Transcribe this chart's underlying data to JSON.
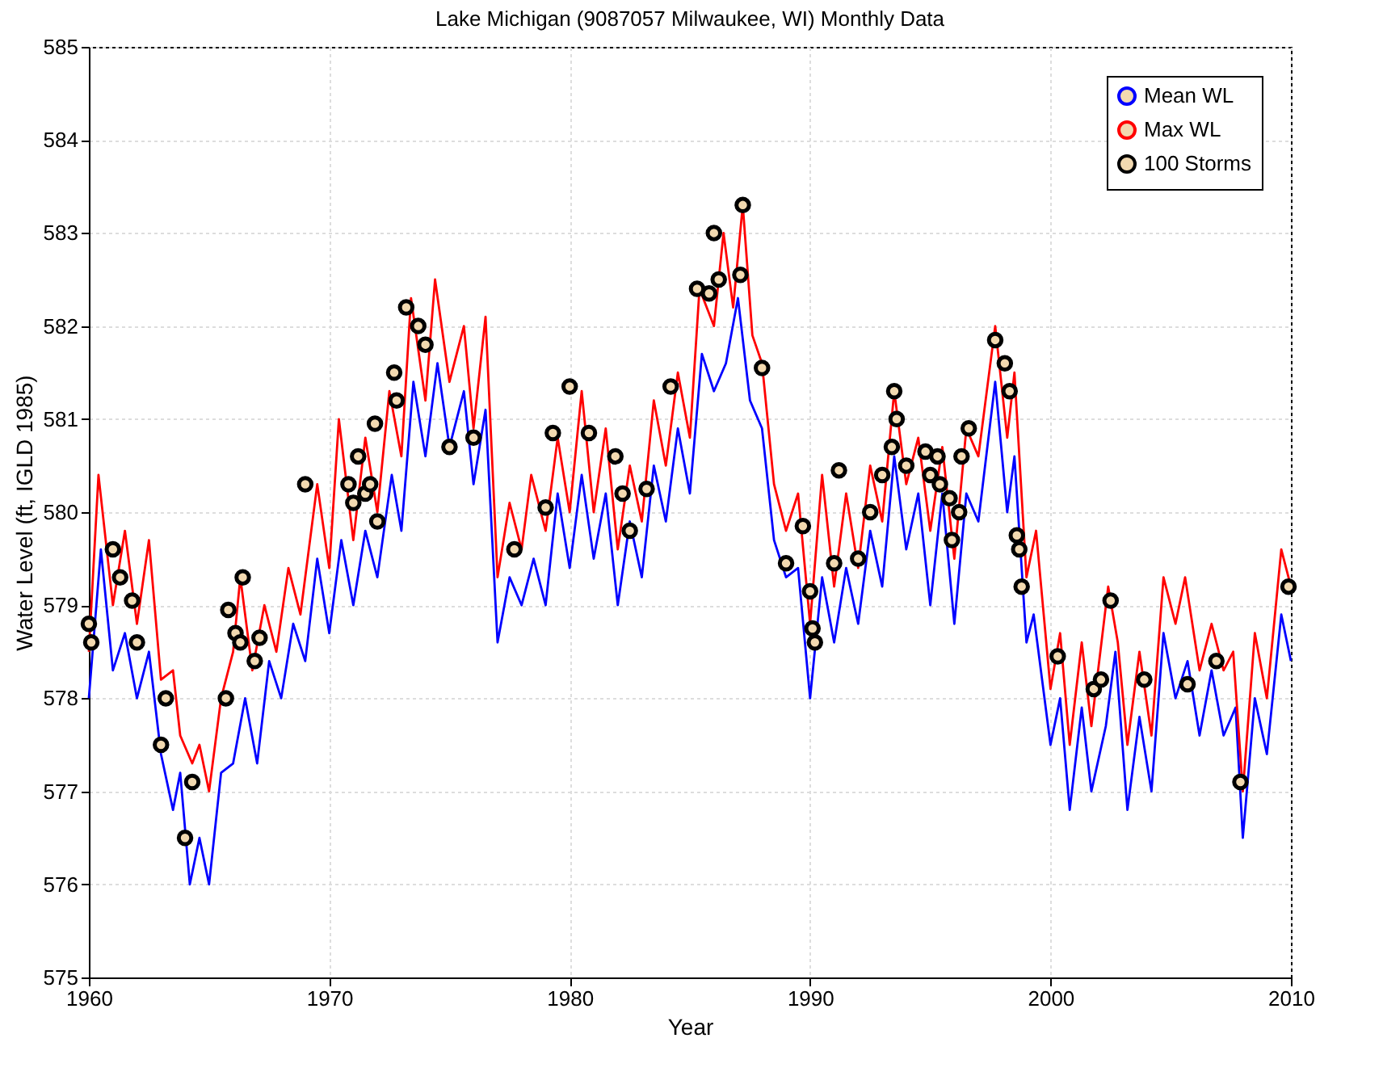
{
  "chart_data": {
    "type": "line",
    "title": "Lake Michigan (9087057 Milwaukee, WI) Monthly Data",
    "xlabel": "Year",
    "ylabel": "Water Level (ft, IGLD 1985)",
    "xlim": [
      1960,
      2010
    ],
    "xticks": [
      1960,
      1970,
      1980,
      1990,
      2000,
      2010
    ],
    "ylim": [
      575,
      585
    ],
    "yticks": [
      575,
      576,
      577,
      578,
      579,
      580,
      581,
      582,
      583,
      584,
      585
    ],
    "grid": true,
    "legend": "top right",
    "line_style": "solid",
    "series": [
      {
        "name": "Mean WL",
        "color": "#0000ff",
        "x": [
          1960,
          1960.5,
          1961,
          1961.5,
          1962,
          1962.5,
          1963,
          1963.5,
          1963.8,
          1964.2,
          1964.6,
          1965,
          1965.5,
          1966,
          1966.5,
          1967,
          1967.5,
          1968,
          1968.5,
          1969,
          1969.5,
          1970,
          1970.5,
          1971,
          1971.5,
          1972,
          1972.6,
          1973,
          1973.5,
          1974,
          1974.5,
          1975,
          1975.6,
          1976,
          1976.5,
          1977,
          1977.5,
          1978,
          1978.5,
          1979,
          1979.5,
          1980,
          1980.5,
          1981,
          1981.5,
          1982,
          1982.5,
          1983,
          1983.5,
          1984,
          1984.5,
          1985,
          1985.5,
          1986,
          1986.5,
          1987,
          1987.5,
          1988,
          1988.5,
          1989,
          1989.5,
          1990,
          1990.5,
          1991,
          1991.5,
          1992,
          1992.5,
          1993,
          1993.5,
          1994,
          1994.5,
          1995,
          1995.5,
          1996,
          1996.5,
          1997,
          1997.7,
          1998.2,
          1998.5,
          1999,
          1999.3,
          2000,
          2000.4,
          2000.8,
          2001.3,
          2001.7,
          2002.3,
          2002.7,
          2003.2,
          2003.7,
          2004.2,
          2004.7,
          2005.2,
          2005.7,
          2006.2,
          2006.7,
          2007.2,
          2007.7,
          2008,
          2008.5,
          2009,
          2009.6,
          2010
        ],
        "values": [
          578.0,
          579.6,
          578.3,
          578.7,
          578.0,
          578.5,
          577.4,
          576.8,
          577.2,
          576.0,
          576.5,
          576.0,
          577.2,
          577.3,
          578.0,
          577.3,
          578.4,
          578.0,
          578.8,
          578.4,
          579.5,
          578.7,
          579.7,
          579.0,
          579.8,
          579.3,
          580.4,
          579.8,
          581.4,
          580.6,
          581.6,
          580.7,
          581.3,
          580.3,
          581.1,
          578.6,
          579.3,
          579.0,
          579.5,
          579.0,
          580.2,
          579.4,
          580.4,
          579.5,
          580.2,
          579.0,
          579.9,
          579.3,
          580.5,
          579.9,
          580.9,
          580.2,
          581.7,
          581.3,
          581.6,
          582.3,
          581.2,
          580.9,
          579.7,
          579.3,
          579.4,
          578.0,
          579.3,
          578.6,
          579.4,
          578.8,
          579.8,
          579.2,
          580.6,
          579.6,
          580.2,
          579.0,
          580.2,
          578.8,
          580.2,
          579.9,
          581.4,
          580.0,
          580.6,
          578.6,
          578.9,
          577.5,
          578.0,
          576.8,
          577.9,
          577.0,
          577.7,
          578.5,
          576.8,
          577.8,
          577.0,
          578.7,
          578.0,
          578.4,
          577.6,
          578.3,
          577.6,
          577.9,
          576.5,
          578.0,
          577.4,
          578.9,
          578.4
        ]
      },
      {
        "name": "Max WL",
        "color": "#ff0000",
        "x": [
          1960,
          1960.4,
          1961,
          1961.5,
          1962,
          1962.5,
          1963,
          1963.5,
          1963.8,
          1964.3,
          1964.6,
          1965,
          1965.5,
          1966,
          1966.3,
          1966.8,
          1967.3,
          1967.8,
          1968.3,
          1968.8,
          1969.5,
          1970,
          1970.4,
          1971,
          1971.5,
          1972,
          1972.5,
          1973,
          1973.4,
          1974,
          1974.4,
          1975,
          1975.6,
          1976,
          1976.5,
          1977,
          1977.5,
          1978,
          1978.4,
          1979,
          1979.5,
          1980,
          1980.5,
          1981,
          1981.5,
          1982,
          1982.5,
          1983,
          1983.5,
          1984,
          1984.5,
          1985,
          1985.4,
          1986,
          1986.4,
          1986.8,
          1987.2,
          1987.6,
          1988,
          1988.5,
          1989,
          1989.5,
          1990,
          1990.5,
          1991,
          1991.5,
          1992,
          1992.5,
          1993,
          1993.5,
          1994,
          1994.5,
          1995,
          1995.5,
          1996,
          1996.5,
          1997,
          1997.7,
          1998.2,
          1998.5,
          1999,
          1999.4,
          2000,
          2000.4,
          2000.8,
          2001.3,
          2001.7,
          2002.4,
          2002.8,
          2003.2,
          2003.7,
          2004.2,
          2004.7,
          2005.2,
          2005.6,
          2006.2,
          2006.7,
          2007.2,
          2007.6,
          2008,
          2008.5,
          2009,
          2009.6,
          2010
        ],
        "values": [
          578.5,
          580.4,
          579.0,
          579.8,
          578.8,
          579.7,
          578.2,
          578.3,
          577.6,
          577.3,
          577.5,
          577.0,
          578.0,
          578.5,
          579.3,
          578.3,
          579.0,
          578.5,
          579.4,
          578.9,
          580.3,
          579.4,
          581.0,
          579.7,
          580.8,
          580.0,
          581.3,
          580.6,
          582.3,
          581.2,
          582.5,
          581.4,
          582.0,
          580.9,
          582.1,
          579.3,
          580.1,
          579.6,
          580.4,
          579.8,
          580.8,
          580.0,
          581.3,
          580.0,
          580.9,
          579.6,
          580.5,
          579.9,
          581.2,
          580.5,
          581.5,
          580.8,
          582.4,
          582.0,
          583.0,
          582.2,
          583.3,
          581.9,
          581.6,
          580.3,
          579.8,
          580.2,
          578.8,
          580.4,
          579.2,
          580.2,
          579.4,
          580.5,
          579.9,
          581.3,
          580.3,
          580.8,
          579.8,
          580.7,
          579.5,
          580.9,
          580.6,
          582.0,
          580.8,
          581.5,
          579.3,
          579.8,
          578.1,
          578.7,
          577.5,
          578.6,
          577.7,
          579.2,
          578.6,
          577.5,
          578.5,
          577.6,
          579.3,
          578.8,
          579.3,
          578.3,
          578.8,
          578.3,
          578.5,
          577.0,
          578.7,
          578.0,
          579.6,
          579.2
        ]
      },
      {
        "name": "100 Storms",
        "type": "scatter",
        "color": "#000000",
        "marker": "circle",
        "x": [
          1960.0,
          1960.1,
          1961.0,
          1961.3,
          1961.8,
          1962.0,
          1963.2,
          1963.0,
          1964.0,
          1964.3,
          1965.7,
          1965.8,
          1966.1,
          1966.4,
          1966.3,
          1966.9,
          1967.1,
          1969.0,
          1970.8,
          1971.0,
          1971.2,
          1971.5,
          1971.7,
          1971.9,
          1972.0,
          1972.7,
          1972.8,
          1973.2,
          1973.7,
          1974.0,
          1975.0,
          1976.0,
          1977.7,
          1979.0,
          1979.3,
          1980.0,
          1980.8,
          1981.9,
          1982.2,
          1982.5,
          1983.2,
          1984.2,
          1985.3,
          1985.8,
          1986.0,
          1986.2,
          1987.1,
          1987.2,
          1988.0,
          1989.0,
          1989.7,
          1990.0,
          1990.1,
          1990.2,
          1991.2,
          1991.0,
          1992.0,
          1992.5,
          1993.0,
          1993.5,
          1993.6,
          1993.4,
          1994.0,
          1994.8,
          1995.0,
          1995.3,
          1995.4,
          1995.8,
          1995.9,
          1996.2,
          1996.3,
          1996.6,
          1997.7,
          1998.1,
          1998.3,
          1998.6,
          1998.7,
          1998.8,
          2000.3,
          2001.8,
          2002.1,
          2002.5,
          2003.9,
          2005.7,
          2006.9,
          2007.9,
          2009.9
        ],
        "values": [
          578.8,
          578.6,
          579.6,
          579.3,
          579.05,
          578.6,
          578.0,
          577.5,
          576.5,
          577.1,
          578.0,
          578.95,
          578.7,
          579.3,
          578.6,
          578.4,
          578.65,
          580.3,
          580.3,
          580.1,
          580.6,
          580.2,
          580.3,
          580.95,
          579.9,
          581.5,
          581.2,
          582.2,
          582.0,
          581.8,
          580.7,
          580.8,
          579.6,
          580.05,
          580.85,
          581.35,
          580.85,
          580.6,
          580.2,
          579.8,
          580.25,
          581.35,
          582.4,
          582.35,
          583.0,
          582.5,
          582.55,
          583.3,
          581.55,
          579.45,
          579.85,
          579.15,
          578.75,
          578.6,
          580.45,
          579.45,
          579.5,
          580.0,
          580.4,
          581.3,
          581.0,
          580.7,
          580.5,
          580.65,
          580.4,
          580.6,
          580.3,
          580.15,
          579.7,
          580.0,
          580.6,
          580.9,
          581.85,
          581.6,
          581.3,
          579.75,
          579.6,
          579.2,
          578.45,
          578.1,
          578.2,
          579.05,
          578.2,
          578.15,
          578.4,
          577.1,
          579.2
        ]
      }
    ]
  }
}
